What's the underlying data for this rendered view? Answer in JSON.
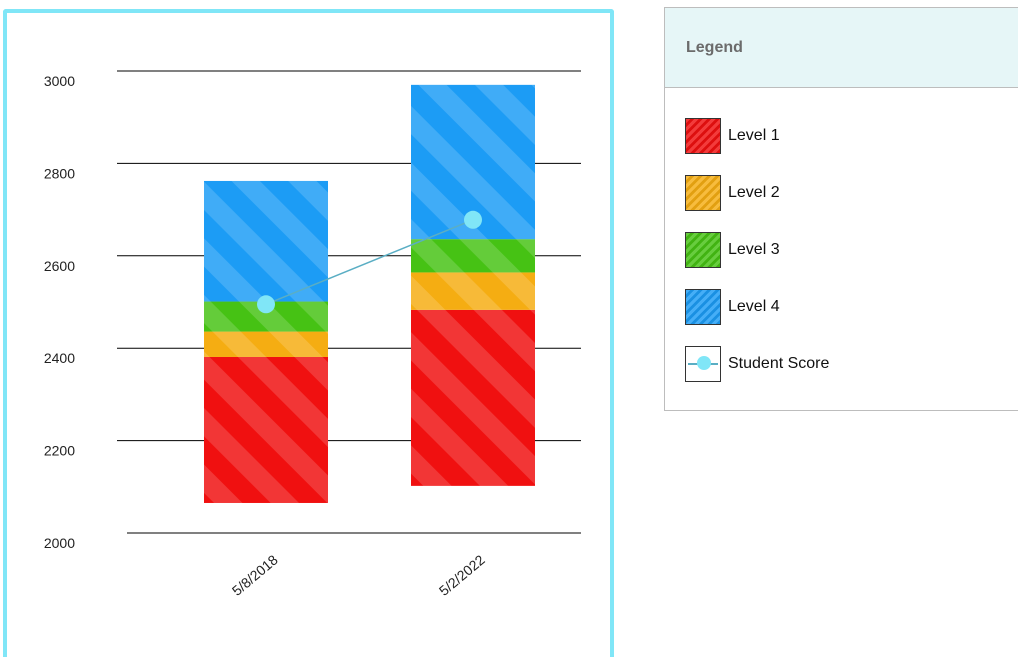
{
  "chart_data": {
    "type": "bar",
    "stacked": true,
    "floating": true,
    "categories": [
      "5/8/2018",
      "5/2/2022"
    ],
    "ylim": [
      2000,
      3000
    ],
    "yticks": [
      2000,
      2200,
      2400,
      2600,
      2800,
      3000
    ],
    "grid": true,
    "legend_position": "right",
    "series": [
      {
        "name": "Level 1",
        "color": "#f01010",
        "ranges": [
          [
            2065,
            2381
          ],
          [
            2102,
            2483
          ]
        ]
      },
      {
        "name": "Level 2",
        "color": "#f5ad12",
        "ranges": [
          [
            2381,
            2436
          ],
          [
            2483,
            2564
          ]
        ]
      },
      {
        "name": "Level 3",
        "color": "#46c214",
        "ranges": [
          [
            2436,
            2501
          ],
          [
            2564,
            2636
          ]
        ]
      },
      {
        "name": "Level 4",
        "color": "#1c9cf5",
        "ranges": [
          [
            2501,
            2762
          ],
          [
            2636,
            2970
          ]
        ]
      }
    ],
    "student_score": {
      "name": "Student Score",
      "color": "#80e6f7",
      "line_color": "#5aaec4",
      "values": [
        2495,
        2678
      ]
    }
  },
  "legend": {
    "title": "Legend",
    "items": [
      {
        "label": "Level 1",
        "color": "#f01010"
      },
      {
        "label": "Level 2",
        "color": "#f5ad12"
      },
      {
        "label": "Level 3",
        "color": "#46c214"
      },
      {
        "label": "Level 4",
        "color": "#1c9cf5"
      },
      {
        "label": "Student Score",
        "icon": "line-with-dot"
      }
    ]
  }
}
